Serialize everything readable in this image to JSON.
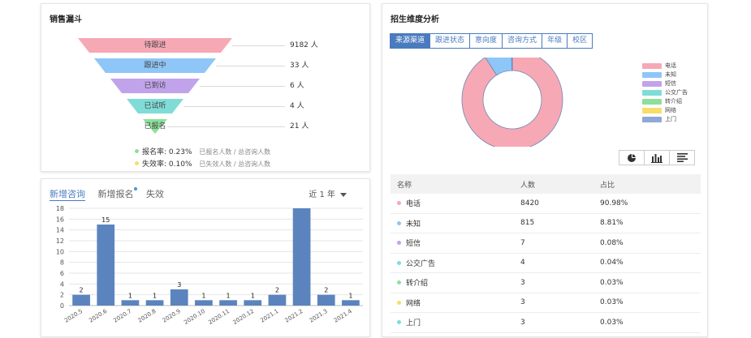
{
  "funnel": {
    "title": "销售漏斗",
    "stages": [
      {
        "label": "待跟进",
        "value": "9182 人",
        "color": "#f7a8b5"
      },
      {
        "label": "跟进中",
        "value": "33 人",
        "color": "#8ec6f7"
      },
      {
        "label": "已到访",
        "value": "6 人",
        "color": "#c1a3ec"
      },
      {
        "label": "已试听",
        "value": "4 人",
        "color": "#7fdcd7"
      },
      {
        "label": "已报名",
        "value": "21 人",
        "color": "#8de09a"
      }
    ],
    "rates": [
      {
        "name": "报名率:",
        "value": "0.23%",
        "desc": "已报名人数 / 总咨询人数",
        "color": "#8de09a"
      },
      {
        "name": "失效率:",
        "value": "0.10%",
        "desc": "已失效人数 / 总咨询人数",
        "color": "#f7dd6a"
      }
    ]
  },
  "bar_panel": {
    "tabs": [
      {
        "label": "新增咨询",
        "active": true
      },
      {
        "label": "新增报名",
        "active": false
      },
      {
        "label": "失效",
        "active": false
      }
    ],
    "period": "近 1 年",
    "chart_data": {
      "type": "bar",
      "categories": [
        "2020.5",
        "2020.6",
        "2020.7",
        "2020.8",
        "2020.9",
        "2020.10",
        "2020.11",
        "2020.12",
        "2021.1",
        "2021.2",
        "2021.3",
        "2021.4"
      ],
      "values": [
        2,
        15,
        1,
        1,
        3,
        1,
        1,
        1,
        2,
        18,
        2,
        1
      ],
      "data_labels": [
        "2",
        "15",
        "1",
        "1",
        "3",
        "1",
        "1",
        "1",
        "2",
        "",
        "2",
        "1"
      ],
      "yticks": [
        "0",
        "2",
        "4",
        "6",
        "8",
        "10",
        "12",
        "14",
        "16",
        "18"
      ],
      "ylim": [
        0,
        18
      ],
      "bar_color": "#5b84bf"
    }
  },
  "dim_panel": {
    "title": "招生维度分析",
    "segments": [
      {
        "label": "来源渠道",
        "active": true
      },
      {
        "label": "跟进状态",
        "active": false
      },
      {
        "label": "意向度",
        "active": false
      },
      {
        "label": "咨询方式",
        "active": false
      },
      {
        "label": "年级",
        "active": false
      },
      {
        "label": "校区",
        "active": false
      }
    ],
    "legend": [
      {
        "label": "电话",
        "color": "#f7a8b5"
      },
      {
        "label": "未知",
        "color": "#8ec6f7"
      },
      {
        "label": "短信",
        "color": "#c1a3ec"
      },
      {
        "label": "公交广告",
        "color": "#7fdcd7"
      },
      {
        "label": "转介绍",
        "color": "#8de09a"
      },
      {
        "label": "网络",
        "color": "#f7dd6a"
      },
      {
        "label": "上门",
        "color": "#8fa8d6"
      }
    ],
    "tools": [
      "pie-chart-icon",
      "bar-chart-icon",
      "list-icon"
    ],
    "table": {
      "headers": [
        "名称",
        "人数",
        "占比"
      ],
      "rows": [
        {
          "name": "电话",
          "count": "8420",
          "pct": "90.98%",
          "color": "#f7a8b5",
          "value": 8420
        },
        {
          "name": "未知",
          "count": "815",
          "pct": "8.81%",
          "color": "#8ec6f7",
          "value": 815
        },
        {
          "name": "短信",
          "count": "7",
          "pct": "0.08%",
          "color": "#c1a3ec",
          "value": 7
        },
        {
          "name": "公交广告",
          "count": "4",
          "pct": "0.04%",
          "color": "#7fdcd7",
          "value": 4
        },
        {
          "name": "转介绍",
          "count": "3",
          "pct": "0.03%",
          "color": "#8de09a",
          "value": 3
        },
        {
          "name": "网络",
          "count": "3",
          "pct": "0.03%",
          "color": "#f7dd6a",
          "value": 3
        },
        {
          "name": "上门",
          "count": "3",
          "pct": "0.03%",
          "color": "#7fdcd7",
          "value": 3
        }
      ]
    }
  }
}
